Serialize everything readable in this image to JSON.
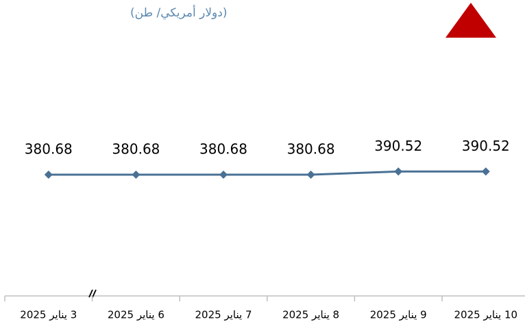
{
  "chart_data": {
    "type": "line",
    "subtitle": "(دولار أمريكي/ طن)",
    "categories": [
      "3 يناير 2025",
      "6 يناير 2025",
      "7 يناير 2025",
      "8 يناير 2025",
      "9 يناير 2025",
      "10 يناير 2025"
    ],
    "values": [
      380.68,
      380.68,
      380.68,
      380.68,
      390.52,
      390.52
    ],
    "color": "#4a7194",
    "ylim": [
      0,
      800
    ]
  }
}
